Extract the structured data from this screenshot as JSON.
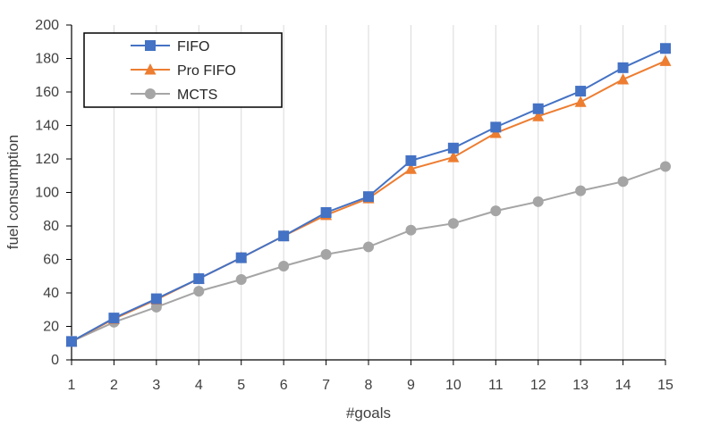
{
  "chart_data": {
    "type": "line",
    "title": "",
    "xlabel": "#goals",
    "ylabel": "fuel consumption",
    "x": [
      1,
      2,
      3,
      4,
      5,
      6,
      7,
      8,
      9,
      10,
      11,
      12,
      13,
      14,
      15
    ],
    "xlim": [
      1,
      15
    ],
    "ylim": [
      0,
      200
    ],
    "yticks": [
      0,
      20,
      40,
      60,
      80,
      100,
      120,
      140,
      160,
      180,
      200
    ],
    "grid": "vertical",
    "legend_position": "top-left",
    "series": [
      {
        "name": "FIFO",
        "color": "#4472c4",
        "marker": "square",
        "values": [
          11,
          25,
          36.5,
          48.5,
          61,
          74,
          88,
          97.5,
          119,
          126.5,
          139,
          150,
          160.5,
          174.5,
          186
        ]
      },
      {
        "name": "Pro FIFO",
        "color": "#ed7d31",
        "marker": "triangle",
        "values": [
          11,
          24.5,
          36,
          48.5,
          61,
          74,
          86.5,
          96.5,
          114,
          121,
          135.5,
          145.5,
          154,
          167.5,
          178.5
        ]
      },
      {
        "name": "MCTS",
        "color": "#a5a5a5",
        "marker": "circle",
        "values": [
          11,
          22.5,
          31.5,
          41,
          48,
          56,
          63,
          67.5,
          77.5,
          81.5,
          89,
          94.5,
          101,
          106.5,
          115.5
        ]
      }
    ]
  }
}
